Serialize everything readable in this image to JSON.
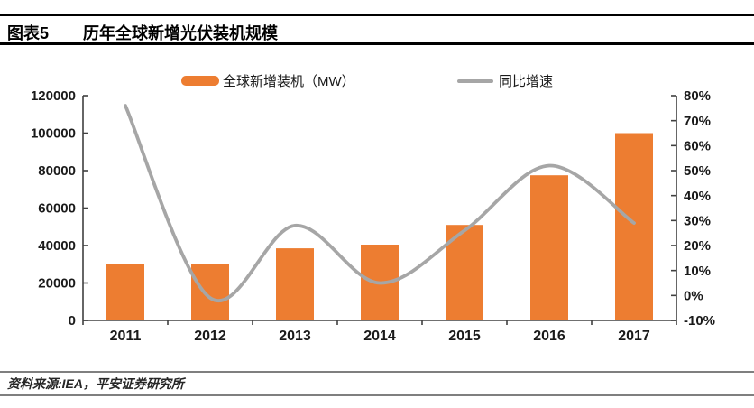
{
  "header": {
    "figure_label": "图表5",
    "title": "历年全球新增光伏装机规模"
  },
  "legend": {
    "items": [
      {
        "label": "全球新增装机（MW）",
        "marker": "bar",
        "color": "#ED7D31"
      },
      {
        "label": "同比增速",
        "marker": "line",
        "color": "#A6A6A6"
      }
    ]
  },
  "footer": {
    "source": "资料来源:IEA，平安证券研究所"
  },
  "colors": {
    "bar": "#ED7D31",
    "line": "#A6A6A6",
    "axis": "#404040",
    "tick_text": "#1a1a1a",
    "header_rule": "#000000",
    "footer_rule": "#7f7f7f"
  },
  "chart_data": {
    "type": "bar",
    "title": "历年全球新增光伏装机规模",
    "categories": [
      "2011",
      "2012",
      "2013",
      "2014",
      "2015",
      "2016",
      "2017"
    ],
    "series": [
      {
        "name": "全球新增装机（MW）",
        "type": "bar",
        "axis": "left",
        "color": "#ED7D31",
        "values": [
          30200,
          30000,
          38500,
          40500,
          51000,
          77500,
          100000
        ]
      },
      {
        "name": "同比增速",
        "type": "line",
        "axis": "right",
        "color": "#A6A6A6",
        "unit": "%",
        "values": [
          76,
          -1,
          28,
          5,
          26,
          52,
          29
        ]
      }
    ],
    "left_axis": {
      "min": 0,
      "max": 120000,
      "step": 20000,
      "tick_labels": [
        "0",
        "20000",
        "40000",
        "60000",
        "80000",
        "100000",
        "120000"
      ]
    },
    "right_axis": {
      "min": -10,
      "max": 80,
      "step": 10,
      "tick_labels": [
        "-10%",
        "0%",
        "10%",
        "20%",
        "30%",
        "40%",
        "50%",
        "60%",
        "70%",
        "80%"
      ]
    },
    "grid": false,
    "legend_position": "top",
    "smooth_line": true
  }
}
